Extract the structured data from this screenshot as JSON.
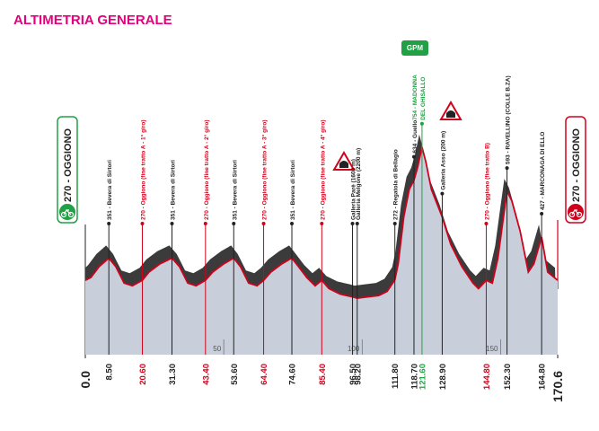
{
  "chart_data": {
    "type": "elevation-profile",
    "title": "ALTIMETRIA GENERALE",
    "start_label": "270 - OGGIONO",
    "finish_label": "270 - OGGIONO",
    "badge": "GPM",
    "x": [
      0,
      2,
      5,
      8.5,
      11,
      14,
      17,
      20.6,
      23,
      27,
      31.3,
      34,
      37,
      40,
      43.4,
      46,
      50,
      53.6,
      56,
      59,
      62,
      64.4,
      67,
      71,
      74.6,
      77,
      80,
      83,
      85.4,
      88,
      92,
      96.5,
      98.2,
      102,
      106,
      109,
      111.8,
      113,
      115,
      117,
      118.7,
      120,
      121.6,
      123,
      125,
      128.9,
      132,
      136,
      140,
      142,
      144.8,
      147,
      149,
      151,
      152.3,
      154,
      157,
      160,
      162,
      164.8,
      167,
      170.6
    ],
    "values": [
      270,
      280,
      320,
      351,
      320,
      260,
      250,
      270,
      300,
      330,
      351,
      320,
      260,
      250,
      270,
      300,
      330,
      351,
      320,
      260,
      250,
      270,
      300,
      330,
      351,
      320,
      280,
      250,
      270,
      240,
      220,
      210,
      205,
      210,
      215,
      230,
      272,
      330,
      500,
      600,
      634,
      680,
      754,
      700,
      600,
      500,
      400,
      320,
      260,
      240,
      270,
      260,
      350,
      500,
      593,
      560,
      450,
      300,
      330,
      427,
      300,
      270
    ],
    "xlim": [
      0,
      170.6
    ],
    "ylim": [
      0,
      1200
    ],
    "xticks": [
      {
        "value": 0,
        "label": "0.0"
      },
      170.6
    ],
    "distance_marks": [
      50,
      100,
      150
    ],
    "fill_color": "#c8cfdb",
    "shadow_color": "#3b3b3b",
    "line_color": "#d0021b",
    "waypoints": [
      {
        "km": {
          "value": 8.5,
          "label": "8.50"
        },
        "lines": [
          "351 - Bevera di Sirtori"
        ],
        "color": "#222222"
      },
      {
        "km": {
          "value": 20.6,
          "label": "20.60"
        },
        "lines": [
          "270 - Oggiono (fine tratto A - 1° giro)"
        ],
        "color": "#d0021b"
      },
      {
        "km": {
          "value": 31.3,
          "label": "31.30"
        },
        "lines": [
          "351 - Bevera di Sirtori"
        ],
        "color": "#222222"
      },
      {
        "km": {
          "value": 43.4,
          "label": "43.40"
        },
        "lines": [
          "270 - Oggiono (fine tratto A - 2° giro)"
        ],
        "color": "#d0021b"
      },
      {
        "km": {
          "value": 53.6,
          "label": "53.60"
        },
        "lines": [
          "351 - Bevera di Sirtori"
        ],
        "color": "#222222"
      },
      {
        "km": {
          "value": 64.4,
          "label": "64.40"
        },
        "lines": [
          "270 - Oggiono (fine tratto A - 3° giro)"
        ],
        "color": "#d0021b"
      },
      {
        "km": {
          "value": 74.6,
          "label": "74.60"
        },
        "lines": [
          "351 - Bevera di Sirtori"
        ],
        "color": "#222222"
      },
      {
        "km": {
          "value": 85.4,
          "label": "85.40"
        },
        "lines": [
          "270 - Oggiono (fine tratto A - 4° giro)"
        ],
        "color": "#d0021b"
      },
      {
        "km": {
          "value": 96.5,
          "label": "96.50"
        },
        "lines": [
          "Galleria Parè (1600 m)"
        ],
        "color": "#222222"
      },
      {
        "km": {
          "value": 98.2,
          "label": "98.20"
        },
        "lines": [
          "Galleria Melgone (2200 m)"
        ],
        "color": "#222222"
      },
      {
        "km": {
          "value": 111.8,
          "label": "111.80"
        },
        "lines": [
          "272 - Regatola di Bellagio"
        ],
        "color": "#222222"
      },
      {
        "km": {
          "value": 118.7,
          "label": "118.70"
        },
        "lines": [
          "634 - Guello"
        ],
        "color": "#222222"
      },
      {
        "km": {
          "value": 121.6,
          "label": "121.60"
        },
        "lines": [
          "754 - MADONNA",
          "DEL GHISALLO"
        ],
        "color": "#22a045"
      },
      {
        "km": {
          "value": 128.9,
          "label": "128.90"
        },
        "lines": [
          "Galleria Asso (200 m)"
        ],
        "color": "#222222"
      },
      {
        "km": {
          "value": 144.8,
          "label": "144.80"
        },
        "lines": [
          "270 - Oggiono (fine tratto B)"
        ],
        "color": "#d0021b"
      },
      {
        "km": {
          "value": 152.3,
          "label": "152.30"
        },
        "lines": [
          "593 - RAVELLINO (COLLE B.ZA)"
        ],
        "color": "#222222"
      },
      {
        "km": {
          "value": 164.8,
          "label": "164.80"
        },
        "lines": [
          "427 - MARCONAGA DI ELLO"
        ],
        "color": "#222222"
      }
    ]
  }
}
